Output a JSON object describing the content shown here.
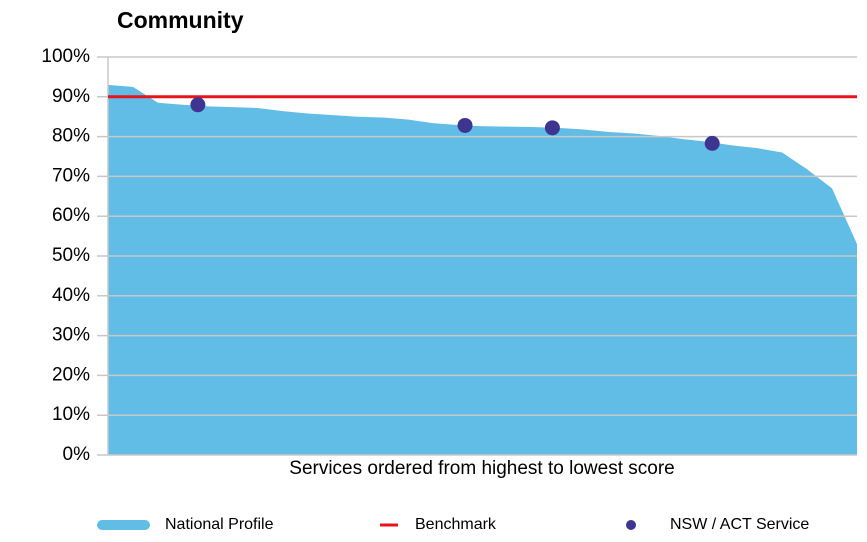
{
  "chart_data": {
    "type": "area",
    "title": "Community",
    "x_label": "Services ordered from highest to lowest score",
    "xlim": [
      0,
      30
    ],
    "ylim": [
      0,
      100
    ],
    "yticks": [
      {
        "value": 0,
        "label": "0%"
      },
      {
        "value": 10,
        "label": "10%"
      },
      {
        "value": 20,
        "label": "20%"
      },
      {
        "value": 30,
        "label": "30%"
      },
      {
        "value": 40,
        "label": "40%"
      },
      {
        "value": 50,
        "label": "50%"
      },
      {
        "value": 60,
        "label": "60%"
      },
      {
        "value": 70,
        "label": "70%"
      },
      {
        "value": 80,
        "label": "80%"
      },
      {
        "value": 90,
        "label": "90%"
      },
      {
        "value": 100,
        "label": "100%"
      }
    ],
    "grid": true,
    "legend": "bottom",
    "series": [
      {
        "name": "National Profile",
        "type": "area",
        "color": "#62bde6",
        "x": [
          0,
          1,
          2,
          3,
          4,
          5,
          6,
          7,
          8,
          9,
          10,
          11,
          12,
          13,
          14,
          15,
          16,
          17,
          18,
          19,
          20,
          21,
          22,
          23,
          24,
          25,
          26,
          27,
          28,
          29,
          30
        ],
        "values": [
          93,
          92.5,
          88.5,
          88,
          87.6,
          87.4,
          87.2,
          86.4,
          85.8,
          85.4,
          85,
          84.8,
          84.3,
          83.4,
          82.9,
          82.6,
          82.5,
          82.4,
          82.2,
          81.8,
          81.2,
          80.8,
          80.2,
          79.4,
          78.7,
          77.8,
          77.1,
          76,
          71.8,
          67,
          53
        ]
      },
      {
        "name": "Benchmark",
        "type": "line",
        "color": "#e8141b",
        "x": [
          0,
          30
        ],
        "values": [
          90,
          90
        ]
      },
      {
        "name": "NSW / ACT Service",
        "type": "scatter",
        "color": "#3d3590",
        "x": [
          3.6,
          14.3,
          17.8,
          24.2
        ],
        "values": [
          88,
          82.8,
          82.2,
          78.3
        ]
      }
    ]
  }
}
